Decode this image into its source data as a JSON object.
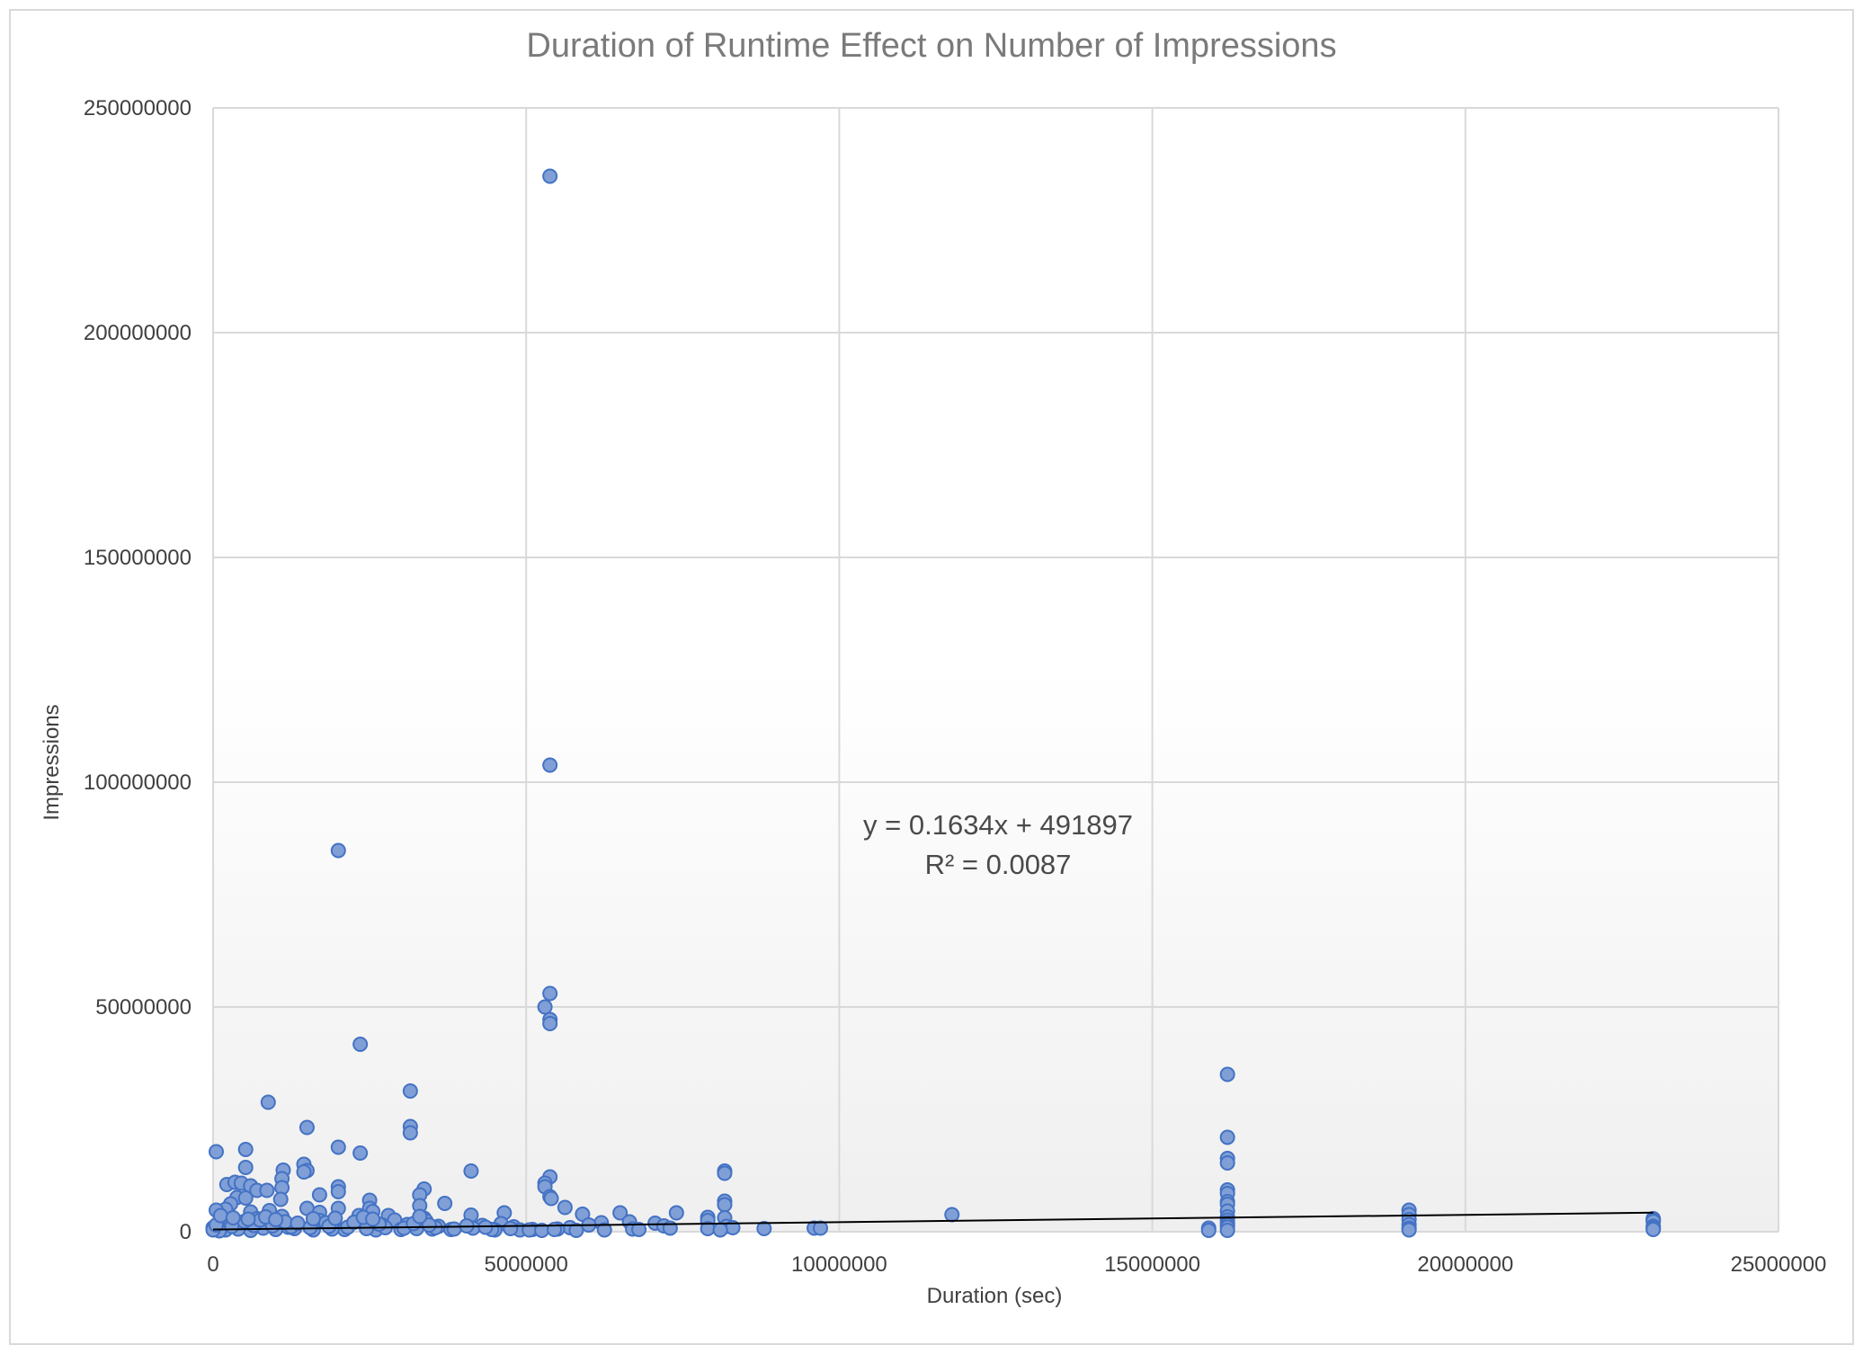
{
  "chart_data": {
    "type": "scatter",
    "title": "Duration of Runtime Effect on Number of Impressions",
    "xlabel": "Duration (sec)",
    "ylabel": "Impressions",
    "xlim": [
      0,
      25000000
    ],
    "ylim": [
      0,
      250000000
    ],
    "x_ticks": [
      "0",
      "5000000",
      "10000000",
      "15000000",
      "20000000",
      "25000000"
    ],
    "y_ticks": [
      "0",
      "50000000",
      "100000000",
      "150000000",
      "200000000",
      "250000000"
    ],
    "grid": true,
    "marker_color": "#7f9fd6",
    "marker_edge_color": "#4472c4",
    "trendline": {
      "type": "linear",
      "slope": 0.1634,
      "intercept": 491897,
      "equation": "y = 0.1634x + 491897",
      "r_squared": "R² = 0.0087",
      "color": "#000000"
    },
    "points": [
      [
        5380000,
        234800000
      ],
      [
        5380000,
        103800000
      ],
      [
        2000000,
        84800000
      ],
      [
        5380000,
        53000000
      ],
      [
        5300000,
        50000000
      ],
      [
        5380000,
        47200000
      ],
      [
        5380000,
        46300000
      ],
      [
        2350000,
        41700000
      ],
      [
        16200000,
        35000000
      ],
      [
        3150000,
        31300000
      ],
      [
        880000,
        28800000
      ],
      [
        1500000,
        23200000
      ],
      [
        3150000,
        23400000
      ],
      [
        3150000,
        22000000
      ],
      [
        16200000,
        21000000
      ],
      [
        2000000,
        18800000
      ],
      [
        50000,
        17800000
      ],
      [
        520000,
        18300000
      ],
      [
        2350000,
        17500000
      ],
      [
        16200000,
        16300000
      ],
      [
        16200000,
        15300000
      ],
      [
        1450000,
        15000000
      ],
      [
        520000,
        14300000
      ],
      [
        1500000,
        13600000
      ],
      [
        1450000,
        13300000
      ],
      [
        1120000,
        13700000
      ],
      [
        4120000,
        13500000
      ],
      [
        8170000,
        13500000
      ],
      [
        8170000,
        13000000
      ],
      [
        5380000,
        12200000
      ],
      [
        1100000,
        11800000
      ],
      [
        220000,
        10500000
      ],
      [
        350000,
        11000000
      ],
      [
        450000,
        10800000
      ],
      [
        5300000,
        10800000
      ],
      [
        5300000,
        10000000
      ],
      [
        600000,
        10200000
      ],
      [
        2000000,
        10000000
      ],
      [
        1100000,
        9800000
      ],
      [
        16200000,
        9300000
      ],
      [
        3370000,
        9500000
      ],
      [
        700000,
        9200000
      ],
      [
        860000,
        9200000
      ],
      [
        2000000,
        8900000
      ],
      [
        16200000,
        8500000
      ],
      [
        1700000,
        8200000
      ],
      [
        3300000,
        8200000
      ],
      [
        5380000,
        7800000
      ],
      [
        5400000,
        7400000
      ],
      [
        380000,
        7600000
      ],
      [
        520000,
        7500000
      ],
      [
        2500000,
        7000000
      ],
      [
        1080000,
        7200000
      ],
      [
        8170000,
        6800000
      ],
      [
        16200000,
        6700000
      ],
      [
        3700000,
        6300000
      ],
      [
        280000,
        6200000
      ],
      [
        16200000,
        6100000
      ],
      [
        8170000,
        6000000
      ],
      [
        3300000,
        5800000
      ],
      [
        5620000,
        5400000
      ],
      [
        2000000,
        5200000
      ],
      [
        1500000,
        5200000
      ],
      [
        2500000,
        5200000
      ],
      [
        200000,
        5000000
      ],
      [
        50000,
        4800000
      ],
      [
        19100000,
        4800000
      ],
      [
        900000,
        4700000
      ],
      [
        16200000,
        4600000
      ],
      [
        2550000,
        4500000
      ],
      [
        600000,
        4400000
      ],
      [
        1700000,
        4300000
      ],
      [
        4650000,
        4200000
      ],
      [
        6500000,
        4200000
      ],
      [
        7400000,
        4200000
      ],
      [
        11800000,
        3800000
      ],
      [
        5900000,
        3900000
      ],
      [
        19100000,
        3800000
      ],
      [
        4120000,
        3700000
      ],
      [
        2330000,
        3600000
      ],
      [
        2800000,
        3600000
      ],
      [
        1100000,
        3400000
      ],
      [
        16200000,
        3300000
      ],
      [
        7900000,
        3200000
      ],
      [
        8170000,
        3100000
      ],
      [
        3370000,
        3000000
      ],
      [
        150000,
        3000000
      ],
      [
        700000,
        2900000
      ],
      [
        23000000,
        2900000
      ],
      [
        19100000,
        2700000
      ],
      [
        2900000,
        2600000
      ],
      [
        16200000,
        2600000
      ],
      [
        23000000,
        2600000
      ],
      [
        7900000,
        2500000
      ],
      [
        16200000,
        2000000
      ],
      [
        6650000,
        2200000
      ],
      [
        1700000,
        2500000
      ],
      [
        3400000,
        2400000
      ],
      [
        1800000,
        2000000
      ],
      [
        7060000,
        1900000
      ],
      [
        6200000,
        2000000
      ],
      [
        23000000,
        2300000
      ],
      [
        4600000,
        1800000
      ],
      [
        400000,
        1700000
      ],
      [
        3100000,
        1600000
      ],
      [
        6000000,
        1500000
      ],
      [
        2700000,
        1500000
      ],
      [
        16200000,
        1500000
      ],
      [
        19100000,
        1600000
      ],
      [
        4300000,
        1400000
      ],
      [
        7200000,
        1300000
      ],
      [
        8200000,
        1200000
      ],
      [
        23000000,
        1200000
      ],
      [
        3600000,
        1200000
      ],
      [
        4800000,
        1100000
      ],
      [
        1200000,
        1000000
      ],
      [
        16200000,
        1000000
      ],
      [
        5700000,
        900000
      ],
      [
        8300000,
        900000
      ],
      [
        9600000,
        800000
      ],
      [
        9700000,
        800000
      ],
      [
        15900000,
        800000
      ],
      [
        19100000,
        800000
      ],
      [
        23000000,
        800000
      ],
      [
        8800000,
        700000
      ],
      [
        7900000,
        700000
      ],
      [
        6700000,
        600000
      ],
      [
        6800000,
        500000
      ],
      [
        5500000,
        600000
      ],
      [
        5100000,
        500000
      ],
      [
        4900000,
        400000
      ],
      [
        4500000,
        400000
      ],
      [
        3800000,
        500000
      ],
      [
        3500000,
        600000
      ],
      [
        3000000,
        500000
      ],
      [
        2600000,
        400000
      ],
      [
        2100000,
        500000
      ],
      [
        1900000,
        600000
      ],
      [
        1600000,
        400000
      ],
      [
        1300000,
        700000
      ],
      [
        1000000,
        500000
      ],
      [
        800000,
        800000
      ],
      [
        600000,
        300000
      ],
      [
        400000,
        600000
      ],
      [
        200000,
        400000
      ],
      [
        100000,
        200000
      ],
      [
        0,
        900000
      ],
      [
        0,
        400000
      ],
      [
        50000,
        1500000
      ],
      [
        300000,
        1200000
      ],
      [
        650000,
        1400000
      ],
      [
        950000,
        1300000
      ],
      [
        1250000,
        1100000
      ],
      [
        1550000,
        900000
      ],
      [
        1850000,
        1200000
      ],
      [
        2150000,
        1000000
      ],
      [
        2450000,
        700000
      ],
      [
        2750000,
        900000
      ],
      [
        3050000,
        800000
      ],
      [
        3250000,
        700000
      ],
      [
        3550000,
        900000
      ],
      [
        3850000,
        600000
      ],
      [
        4150000,
        800000
      ],
      [
        4450000,
        500000
      ],
      [
        4750000,
        700000
      ],
      [
        5050000,
        400000
      ],
      [
        5250000,
        300000
      ],
      [
        5450000,
        500000
      ],
      [
        5800000,
        300000
      ],
      [
        6250000,
        400000
      ],
      [
        15900000,
        300000
      ],
      [
        19100000,
        400000
      ],
      [
        16200000,
        300000
      ],
      [
        23000000,
        500000
      ],
      [
        7300000,
        800000
      ],
      [
        8100000,
        400000
      ],
      [
        500000,
        2300000
      ],
      [
        750000,
        2600000
      ],
      [
        1150000,
        2200000
      ],
      [
        1350000,
        1900000
      ],
      [
        2250000,
        2100000
      ],
      [
        2650000,
        1700000
      ],
      [
        3200000,
        1800000
      ],
      [
        3450000,
        1500000
      ],
      [
        4050000,
        1300000
      ],
      [
        4350000,
        1000000
      ],
      [
        120000,
        3600000
      ],
      [
        320000,
        3100000
      ],
      [
        560000,
        2800000
      ],
      [
        840000,
        3300000
      ],
      [
        1000000,
        2700000
      ],
      [
        1600000,
        2900000
      ],
      [
        1950000,
        3000000
      ],
      [
        2400000,
        3200000
      ],
      [
        2550000,
        2800000
      ],
      [
        3300000,
        3400000
      ]
    ]
  }
}
